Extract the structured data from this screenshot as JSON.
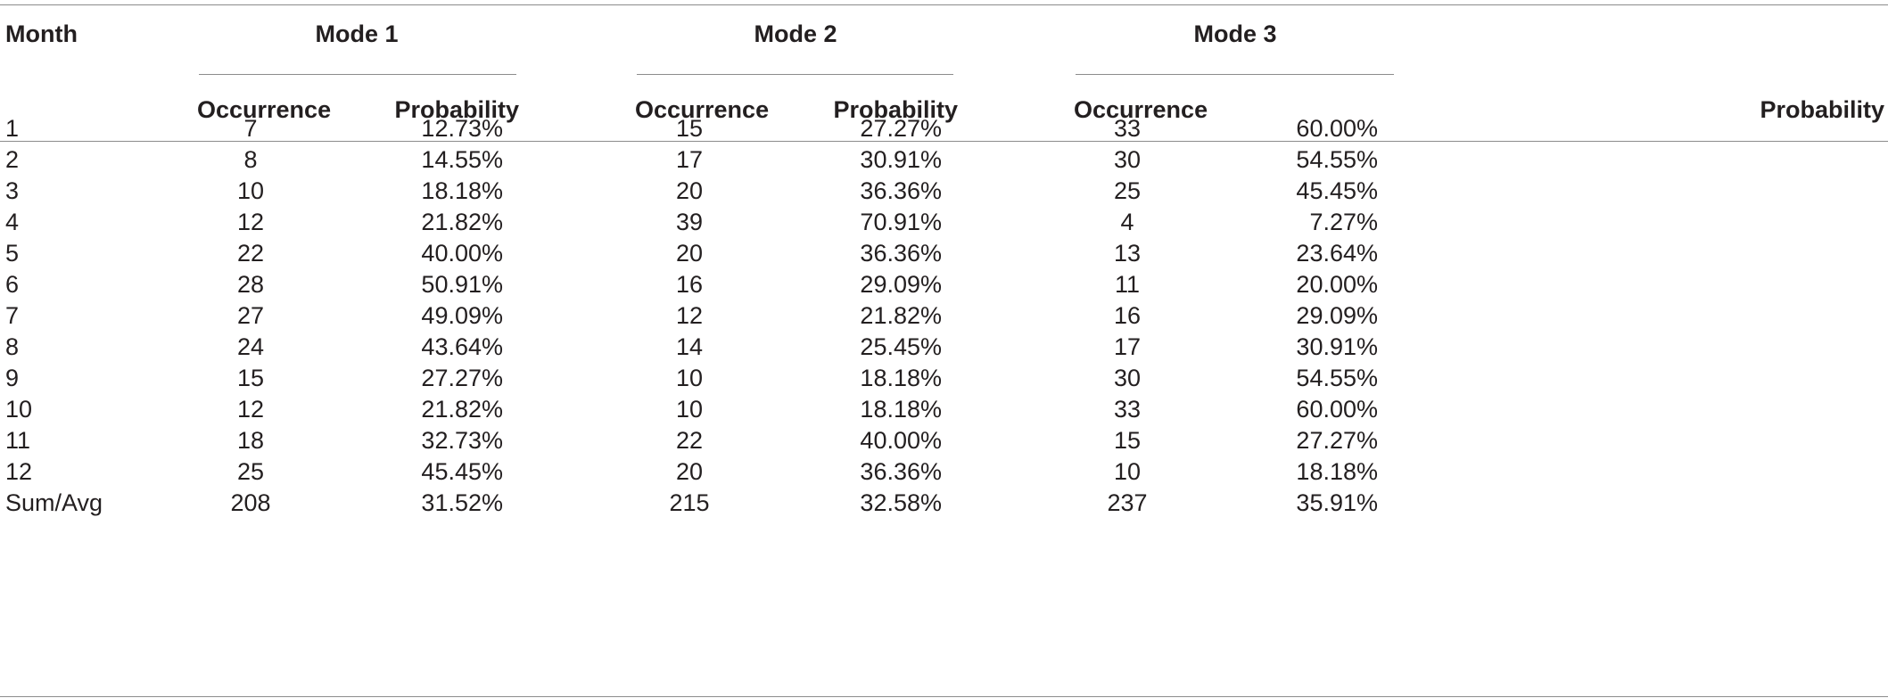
{
  "table": {
    "month_header": "Month",
    "groups": [
      "Mode 1",
      "Mode 2",
      "Mode 3"
    ],
    "subheaders": [
      "Occurrence",
      "Probability",
      "Occurrence",
      "Probability",
      "Occurrence",
      "Probability"
    ],
    "rows": [
      [
        "1",
        "7",
        "12.73%",
        "15",
        "27.27%",
        "33",
        "60.00%"
      ],
      [
        "2",
        "8",
        "14.55%",
        "17",
        "30.91%",
        "30",
        "54.55%"
      ],
      [
        "3",
        "10",
        "18.18%",
        "20",
        "36.36%",
        "25",
        "45.45%"
      ],
      [
        "4",
        "12",
        "21.82%",
        "39",
        "70.91%",
        "4",
        "7.27%"
      ],
      [
        "5",
        "22",
        "40.00%",
        "20",
        "36.36%",
        "13",
        "23.64%"
      ],
      [
        "6",
        "28",
        "50.91%",
        "16",
        "29.09%",
        "11",
        "20.00%"
      ],
      [
        "7",
        "27",
        "49.09%",
        "12",
        "21.82%",
        "16",
        "29.09%"
      ],
      [
        "8",
        "24",
        "43.64%",
        "14",
        "25.45%",
        "17",
        "30.91%"
      ],
      [
        "9",
        "15",
        "27.27%",
        "10",
        "18.18%",
        "30",
        "54.55%"
      ],
      [
        "10",
        "12",
        "21.82%",
        "10",
        "18.18%",
        "33",
        "60.00%"
      ],
      [
        "11",
        "18",
        "32.73%",
        "22",
        "40.00%",
        "15",
        "27.27%"
      ],
      [
        "12",
        "25",
        "45.45%",
        "20",
        "36.36%",
        "10",
        "18.18%"
      ],
      [
        "Sum/Avg",
        "208",
        "31.52%",
        "215",
        "32.58%",
        "237",
        "35.91%"
      ]
    ]
  }
}
